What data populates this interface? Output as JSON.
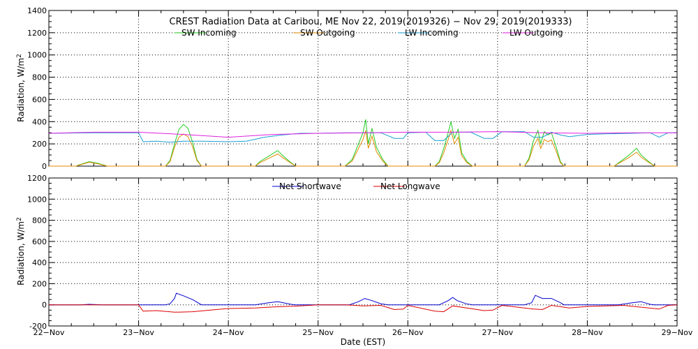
{
  "chart_data": [
    {
      "type": "line",
      "title": "CREST Radiation Data at Caribou, ME   Nov 22, 2019(2019326) − Nov 29, 2019(2019333)",
      "ylabel": "Radiation, W/m^2",
      "xlabel": "",
      "xlim": [
        0,
        7
      ],
      "ylim": [
        0,
        1400
      ],
      "yticks": [
        0,
        200,
        400,
        600,
        800,
        1000,
        1200,
        1400
      ],
      "grid": true,
      "legend_placement": "top",
      "series": [
        {
          "name": "SW Incoming",
          "color": "#22cc22",
          "points": [
            [
              0,
              0
            ],
            [
              0.3,
              0
            ],
            [
              0.35,
              15
            ],
            [
              0.45,
              40
            ],
            [
              0.55,
              25
            ],
            [
              0.65,
              0
            ],
            [
              1.0,
              0
            ],
            [
              1.3,
              0
            ],
            [
              1.35,
              50
            ],
            [
              1.4,
              200
            ],
            [
              1.45,
              330
            ],
            [
              1.5,
              375
            ],
            [
              1.55,
              340
            ],
            [
              1.6,
              220
            ],
            [
              1.65,
              60
            ],
            [
              1.7,
              0
            ],
            [
              2.3,
              0
            ],
            [
              2.35,
              40
            ],
            [
              2.45,
              90
            ],
            [
              2.55,
              140
            ],
            [
              2.6,
              100
            ],
            [
              2.7,
              30
            ],
            [
              2.75,
              0
            ],
            [
              3.3,
              0
            ],
            [
              3.38,
              60
            ],
            [
              3.45,
              200
            ],
            [
              3.5,
              300
            ],
            [
              3.53,
              420
            ],
            [
              3.56,
              200
            ],
            [
              3.6,
              340
            ],
            [
              3.65,
              170
            ],
            [
              3.72,
              60
            ],
            [
              3.78,
              0
            ],
            [
              4.3,
              0
            ],
            [
              4.35,
              40
            ],
            [
              4.4,
              160
            ],
            [
              4.45,
              300
            ],
            [
              4.48,
              400
            ],
            [
              4.52,
              250
            ],
            [
              4.56,
              330
            ],
            [
              4.6,
              120
            ],
            [
              4.66,
              40
            ],
            [
              4.72,
              0
            ],
            [
              5.3,
              0
            ],
            [
              5.35,
              70
            ],
            [
              5.4,
              230
            ],
            [
              5.45,
              320
            ],
            [
              5.48,
              200
            ],
            [
              5.52,
              310
            ],
            [
              5.56,
              280
            ],
            [
              5.6,
              300
            ],
            [
              5.65,
              180
            ],
            [
              5.7,
              40
            ],
            [
              5.74,
              0
            ],
            [
              6.3,
              0
            ],
            [
              6.35,
              30
            ],
            [
              6.45,
              90
            ],
            [
              6.55,
              160
            ],
            [
              6.6,
              100
            ],
            [
              6.7,
              30
            ],
            [
              6.75,
              0
            ],
            [
              7.0,
              0
            ]
          ]
        },
        {
          "name": "SW Outgoing",
          "color": "#e08b00",
          "points": [
            [
              0,
              0
            ],
            [
              0.3,
              0
            ],
            [
              0.35,
              12
            ],
            [
              0.45,
              35
            ],
            [
              0.55,
              20
            ],
            [
              0.65,
              0
            ],
            [
              1.0,
              0
            ],
            [
              1.3,
              0
            ],
            [
              1.35,
              40
            ],
            [
              1.4,
              170
            ],
            [
              1.45,
              260
            ],
            [
              1.5,
              290
            ],
            [
              1.55,
              265
            ],
            [
              1.6,
              180
            ],
            [
              1.65,
              50
            ],
            [
              1.7,
              0
            ],
            [
              2.3,
              0
            ],
            [
              2.35,
              30
            ],
            [
              2.45,
              70
            ],
            [
              2.55,
              110
            ],
            [
              2.6,
              80
            ],
            [
              2.7,
              25
            ],
            [
              2.75,
              0
            ],
            [
              3.3,
              0
            ],
            [
              3.38,
              45
            ],
            [
              3.45,
              160
            ],
            [
              3.5,
              240
            ],
            [
              3.53,
              320
            ],
            [
              3.56,
              160
            ],
            [
              3.6,
              270
            ],
            [
              3.65,
              130
            ],
            [
              3.72,
              45
            ],
            [
              3.78,
              0
            ],
            [
              4.3,
              0
            ],
            [
              4.35,
              30
            ],
            [
              4.4,
              120
            ],
            [
              4.45,
              240
            ],
            [
              4.48,
              320
            ],
            [
              4.52,
              200
            ],
            [
              4.56,
              260
            ],
            [
              4.6,
              95
            ],
            [
              4.66,
              30
            ],
            [
              4.72,
              0
            ],
            [
              5.3,
              0
            ],
            [
              5.35,
              55
            ],
            [
              5.4,
              180
            ],
            [
              5.45,
              250
            ],
            [
              5.48,
              160
            ],
            [
              5.52,
              240
            ],
            [
              5.56,
              220
            ],
            [
              5.6,
              235
            ],
            [
              5.65,
              140
            ],
            [
              5.7,
              30
            ],
            [
              5.74,
              0
            ],
            [
              6.3,
              0
            ],
            [
              6.35,
              25
            ],
            [
              6.45,
              70
            ],
            [
              6.55,
              125
            ],
            [
              6.6,
              80
            ],
            [
              6.7,
              25
            ],
            [
              6.75,
              0
            ],
            [
              7.0,
              0
            ]
          ]
        },
        {
          "name": "LW Incoming",
          "color": "#1a9fd4",
          "points": [
            [
              0,
              295
            ],
            [
              0.5,
              300
            ],
            [
              1.0,
              300
            ],
            [
              1.05,
              220
            ],
            [
              1.2,
              225
            ],
            [
              1.35,
              215
            ],
            [
              1.5,
              225
            ],
            [
              1.7,
              225
            ],
            [
              2.0,
              220
            ],
            [
              2.2,
              225
            ],
            [
              2.4,
              260
            ],
            [
              2.6,
              280
            ],
            [
              2.8,
              295
            ],
            [
              3.0,
              295
            ],
            [
              3.3,
              300
            ],
            [
              3.6,
              300
            ],
            [
              3.7,
              300
            ],
            [
              3.85,
              250
            ],
            [
              3.95,
              250
            ],
            [
              4.0,
              300
            ],
            [
              4.2,
              305
            ],
            [
              4.3,
              230
            ],
            [
              4.4,
              230
            ],
            [
              4.5,
              305
            ],
            [
              4.7,
              305
            ],
            [
              4.85,
              250
            ],
            [
              4.95,
              250
            ],
            [
              5.05,
              310
            ],
            [
              5.3,
              310
            ],
            [
              5.4,
              260
            ],
            [
              5.5,
              260
            ],
            [
              5.6,
              305
            ],
            [
              5.7,
              280
            ],
            [
              5.8,
              265
            ],
            [
              5.9,
              275
            ],
            [
              6.0,
              285
            ],
            [
              6.2,
              290
            ],
            [
              6.5,
              295
            ],
            [
              6.7,
              300
            ],
            [
              6.8,
              260
            ],
            [
              6.9,
              300
            ],
            [
              7.0,
              300
            ]
          ]
        },
        {
          "name": "LW Outgoing",
          "color": "#e020e0",
          "points": [
            [
              0,
              295
            ],
            [
              0.5,
              305
            ],
            [
              1.0,
              305
            ],
            [
              1.5,
              285
            ],
            [
              2.0,
              260
            ],
            [
              2.5,
              285
            ],
            [
              3.0,
              295
            ],
            [
              3.5,
              300
            ],
            [
              4.0,
              305
            ],
            [
              4.5,
              305
            ],
            [
              5.0,
              310
            ],
            [
              5.5,
              300
            ],
            [
              6.0,
              295
            ],
            [
              6.5,
              300
            ],
            [
              7.0,
              300
            ]
          ]
        }
      ]
    },
    {
      "type": "line",
      "title": "",
      "ylabel": "Radiation, W/m^2",
      "xlabel": "Date (EST)",
      "xlim": [
        0,
        7
      ],
      "ylim": [
        -200,
        1200
      ],
      "yticks": [
        -200,
        0,
        200,
        400,
        600,
        800,
        1000,
        1200
      ],
      "xticks": [
        "22−Nov",
        "23−Nov",
        "24−Nov",
        "25−Nov",
        "26−Nov",
        "27−Nov",
        "28−Nov",
        "29−Nov"
      ],
      "grid": true,
      "legend_placement": "top",
      "series": [
        {
          "name": "Net Shortwave",
          "color": "#0000cc",
          "points": [
            [
              0,
              0
            ],
            [
              0.35,
              0
            ],
            [
              0.45,
              5
            ],
            [
              0.6,
              0
            ],
            [
              1.3,
              0
            ],
            [
              1.35,
              10
            ],
            [
              1.4,
              60
            ],
            [
              1.42,
              110
            ],
            [
              1.5,
              85
            ],
            [
              1.6,
              50
            ],
            [
              1.7,
              0
            ],
            [
              2.3,
              0
            ],
            [
              2.45,
              20
            ],
            [
              2.55,
              30
            ],
            [
              2.7,
              5
            ],
            [
              2.75,
              0
            ],
            [
              3.35,
              0
            ],
            [
              3.45,
              30
            ],
            [
              3.52,
              60
            ],
            [
              3.6,
              40
            ],
            [
              3.7,
              10
            ],
            [
              3.78,
              0
            ],
            [
              4.35,
              0
            ],
            [
              4.45,
              40
            ],
            [
              4.5,
              70
            ],
            [
              4.55,
              40
            ],
            [
              4.65,
              10
            ],
            [
              4.72,
              0
            ],
            [
              5.3,
              0
            ],
            [
              5.38,
              20
            ],
            [
              5.42,
              90
            ],
            [
              5.5,
              60
            ],
            [
              5.6,
              60
            ],
            [
              5.7,
              20
            ],
            [
              5.74,
              0
            ],
            [
              6.35,
              0
            ],
            [
              6.5,
              20
            ],
            [
              6.6,
              30
            ],
            [
              6.7,
              5
            ],
            [
              6.75,
              0
            ],
            [
              7.0,
              0
            ]
          ]
        },
        {
          "name": "Net Longwave",
          "color": "#dd0000",
          "points": [
            [
              0,
              0
            ],
            [
              0.8,
              0
            ],
            [
              1.0,
              0
            ],
            [
              1.05,
              -60
            ],
            [
              1.2,
              -55
            ],
            [
              1.4,
              -70
            ],
            [
              1.6,
              -65
            ],
            [
              1.8,
              -50
            ],
            [
              2.0,
              -35
            ],
            [
              2.3,
              -30
            ],
            [
              2.5,
              -20
            ],
            [
              2.8,
              -10
            ],
            [
              3.0,
              0
            ],
            [
              3.3,
              0
            ],
            [
              3.5,
              -10
            ],
            [
              3.7,
              -5
            ],
            [
              3.85,
              -45
            ],
            [
              3.95,
              -40
            ],
            [
              4.0,
              -5
            ],
            [
              4.3,
              -60
            ],
            [
              4.4,
              -65
            ],
            [
              4.5,
              -10
            ],
            [
              4.85,
              -55
            ],
            [
              4.95,
              -50
            ],
            [
              5.05,
              -5
            ],
            [
              5.4,
              -40
            ],
            [
              5.5,
              -45
            ],
            [
              5.6,
              -5
            ],
            [
              5.8,
              -30
            ],
            [
              6.0,
              -15
            ],
            [
              6.4,
              -5
            ],
            [
              6.8,
              -40
            ],
            [
              6.9,
              -5
            ],
            [
              7.0,
              0
            ]
          ]
        }
      ]
    }
  ]
}
